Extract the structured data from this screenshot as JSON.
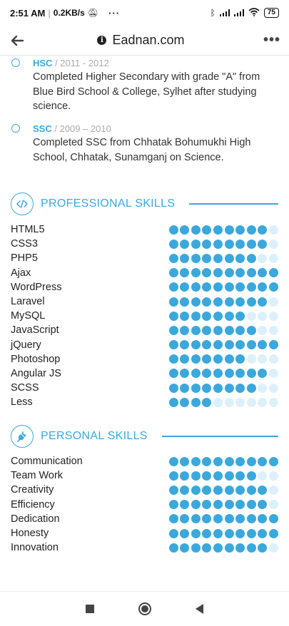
{
  "status_bar": {
    "time": "2:51 AM",
    "speed": "0.2KB/s",
    "more": "···",
    "battery": "75"
  },
  "browser": {
    "url": "Eadnan.com",
    "back_icon": "arrow-left-icon",
    "more_icon": "more-dots-icon",
    "more_label": "•••"
  },
  "education": [
    {
      "degree": "HSC",
      "years": " / 2011 - 2012",
      "description": "Completed Higher Secondary with grade \"A\" from Blue Bird School & College, Sylhet after studying science."
    },
    {
      "degree": "SSC",
      "years": " / 2009 – 2010",
      "description": "Completed SSC from Chhatak Bohumukhi High School, Chhatak, Sunamganj on Science."
    }
  ],
  "professional": {
    "title": "PROFESSIONAL SKILLS",
    "icon": "code-icon",
    "max_level": 10,
    "items": [
      {
        "name": "HTML5",
        "level": 9
      },
      {
        "name": "CSS3",
        "level": 9
      },
      {
        "name": "PHP5",
        "level": 8
      },
      {
        "name": "Ajax",
        "level": 10
      },
      {
        "name": "WordPress",
        "level": 10
      },
      {
        "name": "Laravel",
        "level": 9
      },
      {
        "name": "MySQL",
        "level": 7
      },
      {
        "name": "JavaScript",
        "level": 8
      },
      {
        "name": "jQuery",
        "level": 10
      },
      {
        "name": "Photoshop",
        "level": 7
      },
      {
        "name": "Angular JS",
        "level": 9
      },
      {
        "name": "SCSS",
        "level": 8
      },
      {
        "name": "Less",
        "level": 4
      }
    ]
  },
  "personal": {
    "title": "PERSONAL SKILLS",
    "icon": "plug-icon",
    "max_level": 10,
    "items": [
      {
        "name": "Communication",
        "level": 10
      },
      {
        "name": "Team Work",
        "level": 8
      },
      {
        "name": "Creativity",
        "level": 9
      },
      {
        "name": "Efficiency",
        "level": 9
      },
      {
        "name": "Dedication",
        "level": 10
      },
      {
        "name": "Honesty",
        "level": 10
      },
      {
        "name": "Innovation",
        "level": 9
      }
    ]
  },
  "colors": {
    "accent": "#3aa8dc",
    "dot_empty": "#dcf0fa"
  }
}
